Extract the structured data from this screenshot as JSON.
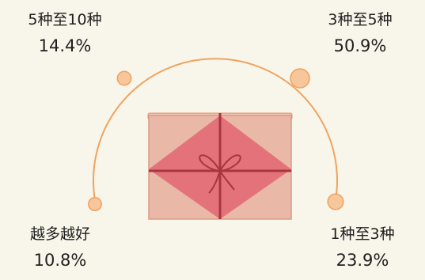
{
  "chart_data": {
    "type": "pie",
    "categories": [
      "5种至10种",
      "3种至5种",
      "越多越好",
      "1种至3种"
    ],
    "values": [
      14.4,
      50.9,
      10.8,
      23.9
    ],
    "labels": [
      "14.4%",
      "50.9%",
      "10.8%",
      "23.9%"
    ],
    "unit": "%",
    "title": "",
    "legend": "none"
  },
  "colors": {
    "background": "#f8f5ea",
    "arc": "#f0a35e",
    "dot": "#f7c69b",
    "box": "#e9b8a6",
    "box_diamond": "#e4727b",
    "ribbon": "#a8363e"
  }
}
